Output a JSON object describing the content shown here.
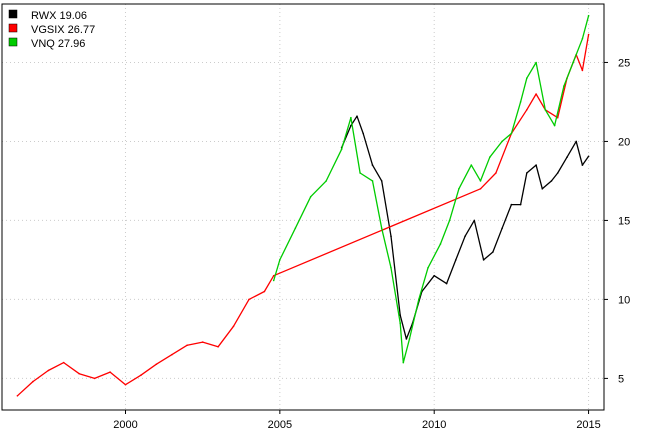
{
  "chart_data": {
    "type": "line",
    "title": "",
    "xlabel": "",
    "ylabel": "",
    "xlim": [
      1996.0,
      2015.5
    ],
    "ylim": [
      3.0,
      28.7
    ],
    "x_ticks": [
      2000,
      2005,
      2010,
      2015
    ],
    "x_tick_labels": [
      "2000",
      "2005",
      "2010",
      "2015"
    ],
    "y_ticks": [
      5,
      10,
      15,
      20,
      25
    ],
    "y_tick_labels": [
      "5",
      "10",
      "15",
      "20",
      "25"
    ],
    "y_axis_side": "right",
    "grid": true,
    "legend_position": "top-left",
    "legend": [
      {
        "label": "RWX 19.06",
        "color": "#000000"
      },
      {
        "label": "VGSIX 26.77",
        "color": "#ff0000"
      },
      {
        "label": "VNQ 27.96",
        "color": "#00cc00"
      }
    ],
    "series": [
      {
        "name": "RWX",
        "color": "#000000",
        "x": [
          2007.0,
          2007.3,
          2007.5,
          2007.7,
          2008.0,
          2008.3,
          2008.6,
          2008.9,
          2009.1,
          2009.3,
          2009.6,
          2010.0,
          2010.4,
          2010.7,
          2011.0,
          2011.3,
          2011.6,
          2011.9,
          2012.2,
          2012.5,
          2012.8,
          2013.0,
          2013.3,
          2013.5,
          2013.8,
          2014.0,
          2014.3,
          2014.6,
          2014.8,
          2015.0
        ],
        "y": [
          19.6,
          21.0,
          21.6,
          20.5,
          18.5,
          17.5,
          14.0,
          9.0,
          7.5,
          8.5,
          10.5,
          11.5,
          11.0,
          12.5,
          14.0,
          15.0,
          12.5,
          13.0,
          14.5,
          16.0,
          16.0,
          18.0,
          18.5,
          17.0,
          17.5,
          18.0,
          19.0,
          20.0,
          18.5,
          19.06
        ]
      },
      {
        "name": "VGSIX",
        "color": "#ff0000",
        "x": [
          1996.5,
          1997.0,
          1997.5,
          1998.0,
          1998.5,
          1999.0,
          1999.5,
          2000.0,
          2000.5,
          2001.0,
          2001.5,
          2002.0,
          2002.5,
          2003.0,
          2003.5,
          2004.0,
          2004.5,
          2004.8,
          2011.5,
          2012.0,
          2012.5,
          2013.0,
          2013.3,
          2013.6,
          2014.0,
          2014.3,
          2014.6,
          2014.8,
          2015.0
        ],
        "y": [
          3.9,
          4.8,
          5.5,
          6.0,
          5.3,
          5.0,
          5.4,
          4.6,
          5.2,
          5.9,
          6.5,
          7.1,
          7.3,
          7.0,
          8.3,
          10.0,
          10.5,
          11.5,
          17.0,
          18.0,
          20.5,
          22.0,
          23.0,
          22.0,
          21.5,
          24.0,
          25.5,
          24.5,
          26.77
        ]
      },
      {
        "name": "VNQ",
        "color": "#00cc00",
        "x": [
          2004.8,
          2005.0,
          2005.5,
          2006.0,
          2006.5,
          2007.0,
          2007.3,
          2007.6,
          2008.0,
          2008.3,
          2008.6,
          2008.9,
          2009.0,
          2009.2,
          2009.5,
          2009.8,
          2010.2,
          2010.5,
          2010.8,
          2011.2,
          2011.5,
          2011.8,
          2012.2,
          2012.5,
          2012.8,
          2013.0,
          2013.3,
          2013.6,
          2013.9,
          2014.2,
          2014.5,
          2014.8,
          2015.0
        ],
        "y": [
          11.2,
          12.5,
          14.5,
          16.5,
          17.5,
          19.5,
          21.5,
          18.0,
          17.5,
          14.5,
          12.0,
          8.5,
          6.0,
          7.5,
          10.0,
          12.0,
          13.5,
          15.0,
          17.0,
          18.5,
          17.5,
          19.0,
          20.0,
          20.5,
          22.5,
          24.0,
          25.0,
          22.0,
          21.0,
          23.5,
          25.0,
          26.5,
          27.96
        ]
      }
    ]
  }
}
